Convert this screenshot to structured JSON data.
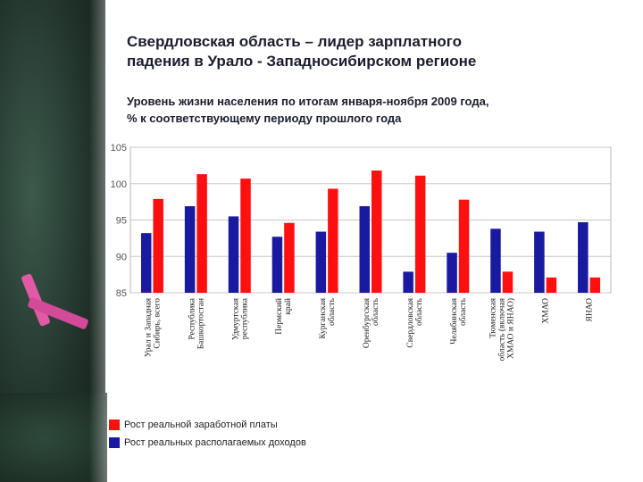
{
  "slide": {
    "title_line1": "Свердловская область – лидер зарплатного",
    "title_line2": "падения в Урало - Западносибирском регионе",
    "subtitle_line1": "Уровень жизни населения по итогам января-ноября 2009 года,",
    "subtitle_line2": "% к соответствующему периоду прошлого года"
  },
  "colors": {
    "wage": "#ff1010",
    "income": "#1a1aa0"
  },
  "chart_data": {
    "type": "bar",
    "title": "Уровень жизни населения по итогам января-ноября 2009 года, % к соответствующему периоду прошлого года",
    "ylim": [
      85,
      105
    ],
    "yticks": [
      85,
      90,
      95,
      100,
      105
    ],
    "grid": true,
    "legend_position": "bottom-left",
    "categories": [
      [
        "Урал и Западная",
        "Сибирь, всего"
      ],
      [
        "Республика",
        "Башкортостан"
      ],
      [
        "Удмуртская",
        "республика"
      ],
      [
        "Пермский",
        "край"
      ],
      [
        "Курганская",
        "область"
      ],
      [
        "Оренбургская",
        "область"
      ],
      [
        "Свердловская",
        "область"
      ],
      [
        "Челябинская",
        "область"
      ],
      [
        "Тюменская",
        "область (включая",
        "ХМАО и ЯНАО)"
      ],
      [
        "ХМАО"
      ],
      [
        "ЯНАО"
      ]
    ],
    "series": [
      {
        "name": "Рост реальных располагаемых доходов",
        "key": "income",
        "values": [
          93.2,
          96.9,
          95.5,
          92.7,
          93.4,
          96.9,
          87.9,
          90.5,
          93.8,
          93.4,
          94.7
        ]
      },
      {
        "name": "Рост реальной заработной платы",
        "key": "wage",
        "values": [
          97.9,
          101.3,
          100.7,
          94.6,
          99.3,
          101.8,
          101.1,
          97.8,
          87.9,
          87.1,
          87.1
        ]
      }
    ]
  }
}
